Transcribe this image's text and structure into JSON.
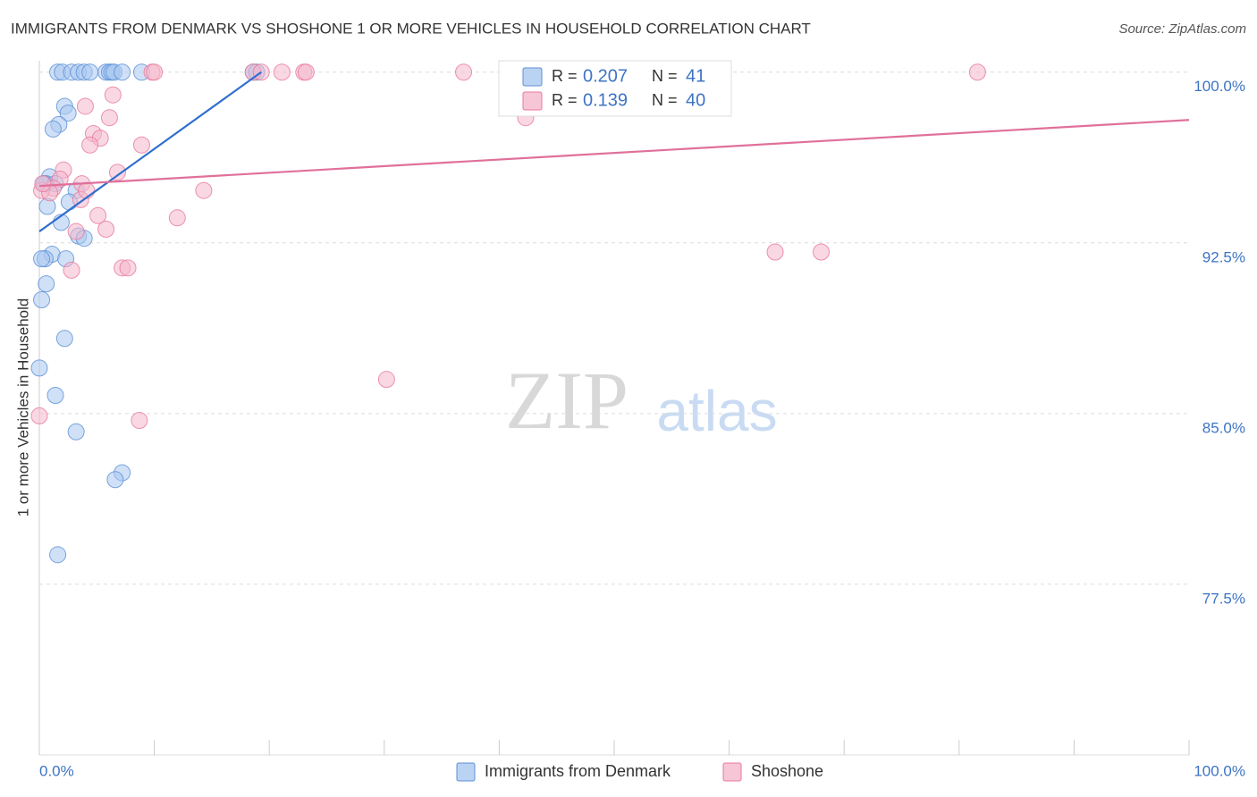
{
  "chart_data": {
    "type": "scatter",
    "title": "IMMIGRANTS FROM DENMARK VS SHOSHONE 1 OR MORE VEHICLES IN HOUSEHOLD CORRELATION CHART",
    "source": "Source: ZipAtlas.com",
    "watermark": [
      "ZIP",
      "atlas"
    ],
    "ylabel": "1 or more Vehicles in Household",
    "xlim": [
      0,
      100
    ],
    "ylim": [
      70,
      100.5
    ],
    "xticks": [
      {
        "value": 0,
        "label": "0.0%"
      },
      {
        "value": 10,
        "label": null
      },
      {
        "value": 20,
        "label": null
      },
      {
        "value": 30,
        "label": null
      },
      {
        "value": 40,
        "label": null
      },
      {
        "value": 50,
        "label": null
      },
      {
        "value": 60,
        "label": null
      },
      {
        "value": 70,
        "label": null
      },
      {
        "value": 80,
        "label": null
      },
      {
        "value": 90,
        "label": null
      },
      {
        "value": 100,
        "label": "100.0%"
      }
    ],
    "yticks": [
      {
        "value": 100,
        "label": "100.0%"
      },
      {
        "value": 92.5,
        "label": "92.5%"
      },
      {
        "value": 85,
        "label": "85.0%"
      },
      {
        "value": 77.5,
        "label": "77.5%"
      }
    ],
    "grid": true,
    "stat_labels": [
      "R =",
      "N ="
    ],
    "series": [
      {
        "name": "Immigrants from Denmark",
        "color": "#5b8fd6",
        "fill": "#aac8f0",
        "line_color": "#2f6fcf",
        "r": 0.207,
        "n": 41,
        "x": [
          1.6,
          2.0,
          2.8,
          3.4,
          3.9,
          4.4,
          5.8,
          6.1,
          6.3,
          6.5,
          7.2,
          8.9,
          18.6,
          18.9,
          2.2,
          2.5,
          1.7,
          1.2,
          0.9,
          0.6,
          0.4,
          1.4,
          3.2,
          2.6,
          0.7,
          1.9,
          3.4,
          3.9,
          1.1,
          0.5,
          0.2,
          2.3,
          0.6,
          0.2,
          2.2,
          0.0,
          1.4,
          3.2,
          7.2,
          6.6,
          1.6
        ],
        "values": [
          100,
          100,
          100,
          100,
          100,
          100,
          100,
          100,
          100,
          100,
          100,
          100,
          100,
          100,
          98.5,
          98.2,
          97.7,
          97.5,
          95.4,
          95.1,
          95.1,
          95.1,
          94.8,
          94.3,
          94.1,
          93.4,
          92.8,
          92.7,
          92.0,
          91.8,
          91.8,
          91.8,
          90.7,
          90.0,
          88.3,
          87.0,
          85.8,
          84.2,
          82.4,
          82.1,
          78.8
        ],
        "trendline": {
          "x": [
            0,
            19.3
          ],
          "y": [
            93.0,
            100
          ]
        }
      },
      {
        "name": "Shoshone",
        "color": "#e8789b",
        "fill": "#f4b8cc",
        "line_color": "#e0709a",
        "r": 0.139,
        "n": 40,
        "x": [
          9.8,
          10.0,
          18.6,
          19.3,
          21.1,
          23.0,
          23.2,
          36.9,
          81.6,
          42.3,
          6.4,
          4.0,
          6.1,
          4.7,
          5.3,
          4.4,
          8.9,
          2.1,
          6.8,
          1.8,
          3.7,
          14.3,
          1.2,
          3.6,
          0.2,
          12.0,
          5.1,
          5.8,
          3.2,
          7.2,
          7.7,
          2.8,
          64.0,
          68.0,
          30.2,
          8.7,
          0.0,
          0.9,
          0.3,
          4.1
        ],
        "values": [
          100,
          100,
          100,
          100,
          100,
          100,
          100,
          100,
          100,
          98.0,
          99.0,
          98.5,
          98.0,
          97.3,
          97.1,
          96.8,
          96.8,
          95.7,
          95.6,
          95.3,
          95.1,
          94.8,
          94.9,
          94.4,
          94.8,
          93.6,
          93.7,
          93.1,
          93.0,
          91.4,
          91.4,
          91.3,
          92.1,
          92.1,
          86.5,
          84.7,
          84.9,
          94.7,
          95.1,
          94.8
        ],
        "trendline": {
          "x": [
            0,
            100
          ],
          "y": [
            95.0,
            97.9
          ]
        }
      }
    ]
  }
}
